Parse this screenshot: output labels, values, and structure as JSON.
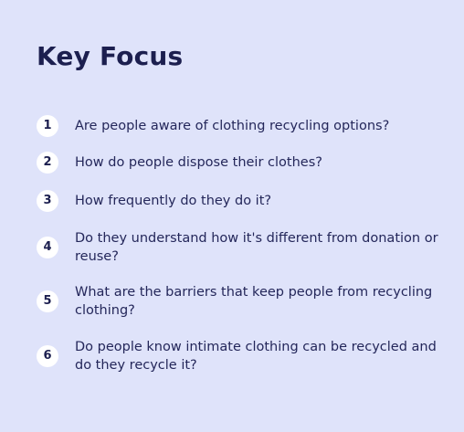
{
  "title": "Key Focus",
  "items": [
    {
      "number": "1",
      "text": "Are people aware of clothing recycling options?"
    },
    {
      "number": "2",
      "text": "How do people dispose their clothes?"
    },
    {
      "number": "3",
      "text": "How frequently do they do it?"
    },
    {
      "number": "4",
      "text": "Do they understand how it's different from donation or reuse?"
    },
    {
      "number": "5",
      "text": "What are the barriers that keep people from recycling clothing?"
    },
    {
      "number": "6",
      "text": "Do people know intimate clothing can be recycled and do they recycle it?"
    }
  ],
  "colors": {
    "background": "#dfe3fa",
    "title": "#1c1f4f",
    "badge_bg": "#ffffff",
    "text": "#24275a"
  }
}
